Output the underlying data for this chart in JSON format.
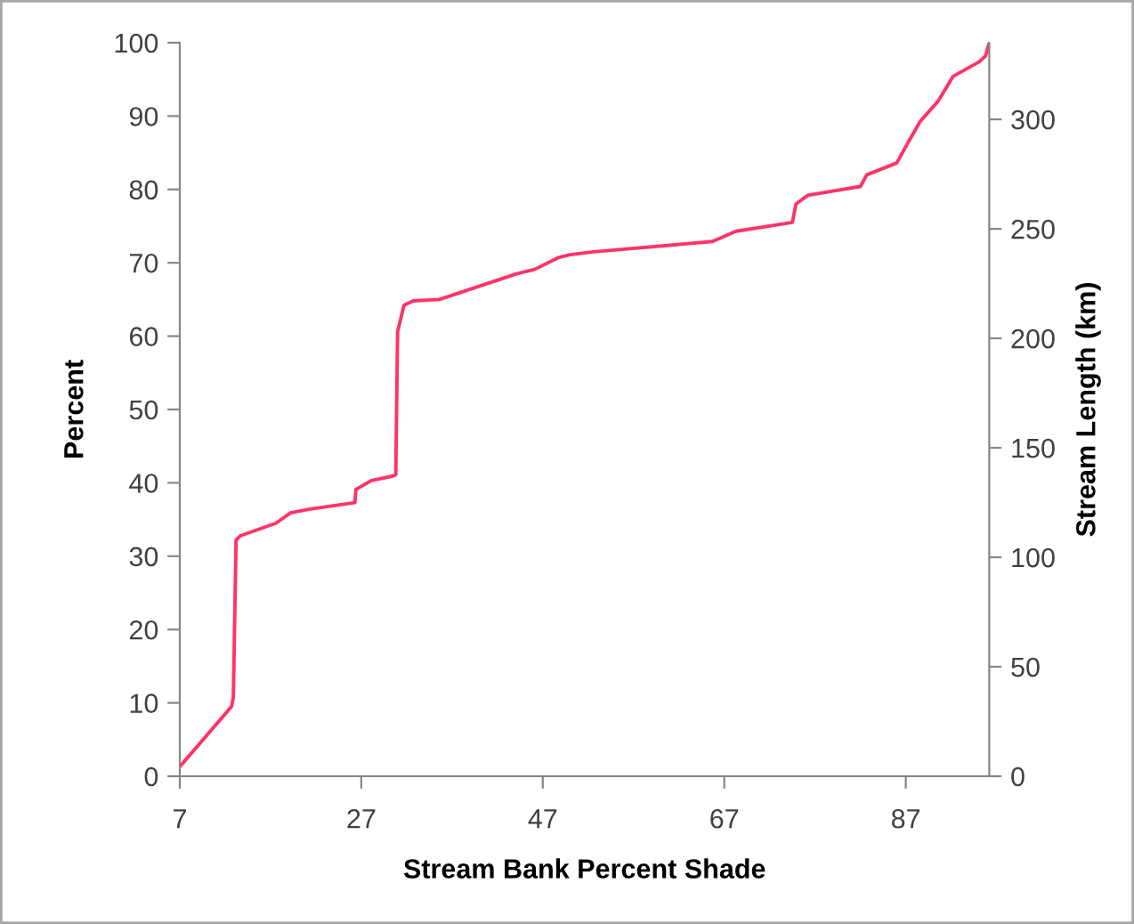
{
  "chart_data": {
    "type": "line",
    "xlabel": "Stream Bank Percent Shade",
    "ylabel": "Percent",
    "y2label": "Stream Length (km)",
    "series": [
      {
        "color": "#ff3366",
        "x": [
          7.0,
          12.7,
          12.9,
          13.2,
          13.7,
          17.6,
          19.2,
          21.2,
          26.3,
          26.4,
          28.1,
          30.4,
          30.8,
          31.0,
          31.7,
          32.7,
          35.6,
          44.1,
          46.1,
          48.7,
          50.0,
          52.6,
          65.7,
          68.3,
          74.5,
          74.9,
          76.2,
          82.0,
          82.7,
          86.0,
          87.3,
          88.6,
          90.6,
          92.2,
          95.1,
          95.8,
          96.2
        ],
        "values": [
          1.3,
          9.5,
          10.8,
          32.2,
          32.8,
          34.5,
          35.9,
          36.4,
          37.3,
          39.1,
          40.3,
          40.9,
          41.1,
          60.6,
          64.2,
          64.8,
          65.0,
          68.5,
          69.1,
          70.7,
          71.1,
          71.5,
          72.9,
          74.3,
          75.5,
          78.0,
          79.2,
          80.4,
          82.0,
          83.6,
          86.5,
          89.3,
          92.1,
          95.4,
          97.4,
          98.2,
          100.0
        ]
      }
    ],
    "xlim": [
      7,
      96.2
    ],
    "xticks": [
      7,
      27,
      47,
      67,
      87
    ],
    "ylim": [
      0,
      100
    ],
    "yticks": [
      0,
      10,
      20,
      30,
      40,
      50,
      60,
      70,
      80,
      90,
      100
    ],
    "y2lim": [
      0,
      335
    ],
    "y2ticks": [
      0,
      50,
      100,
      150,
      200,
      250,
      300
    ],
    "grid": false,
    "legend": false,
    "marker": "none",
    "line_style": "solid"
  }
}
